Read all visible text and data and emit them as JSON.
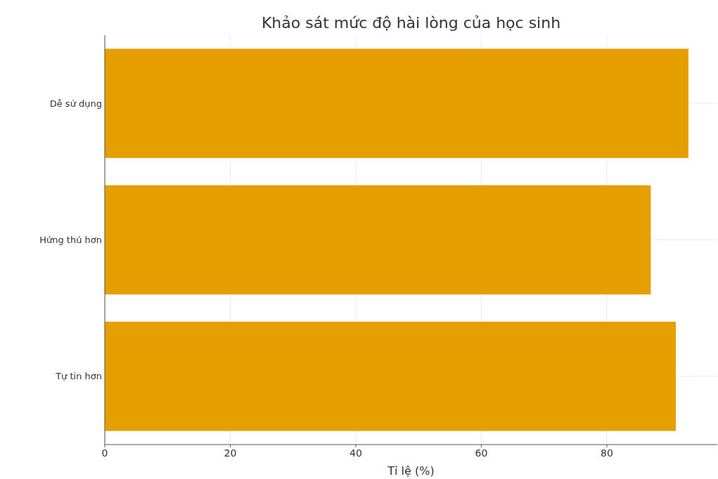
{
  "chart_data": {
    "type": "bar",
    "orientation": "horizontal",
    "title": "Khảo sát mức độ hài lòng của học sinh",
    "xlabel": "Tỉ lệ (%)",
    "categories": [
      "Dễ sử dụng",
      "Hứng thú hơn",
      "Tự tin hơn"
    ],
    "values": [
      93,
      87,
      91
    ],
    "color": "#e69f00",
    "xlim": [
      0,
      97.6
    ],
    "xticks": [
      0,
      20,
      40,
      60,
      80
    ],
    "grid": true
  }
}
